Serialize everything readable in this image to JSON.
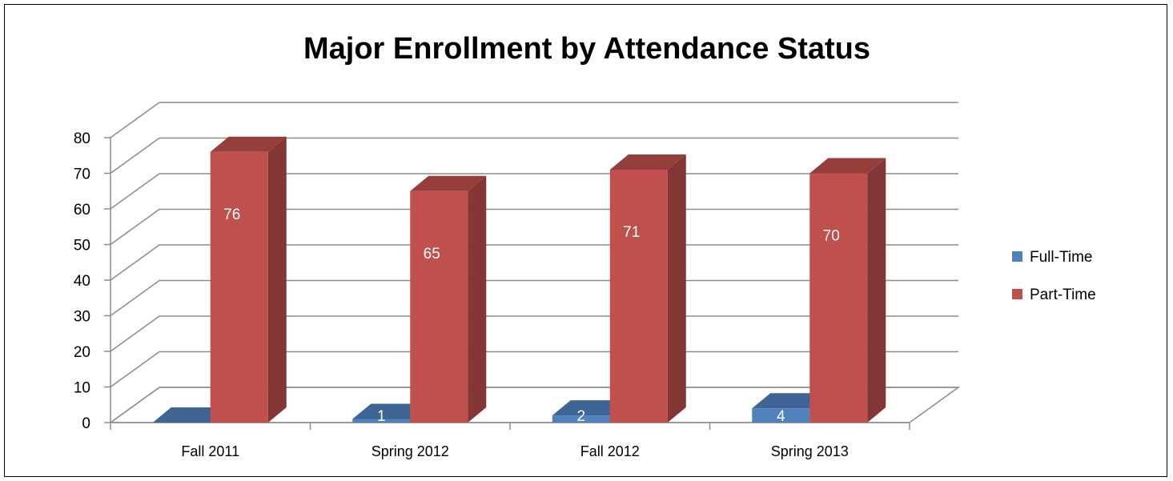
{
  "chart_data": {
    "type": "bar",
    "title": "Major Enrollment by Attendance Status",
    "categories": [
      "Fall 2011",
      "Spring 2012",
      "Fall 2012",
      "Spring 2013"
    ],
    "series": [
      {
        "name": "Full-Time",
        "values": [
          0,
          1,
          2,
          4
        ],
        "labels": [
          "",
          "1",
          "2",
          "4"
        ],
        "color": "#4F81BD"
      },
      {
        "name": "Part-Time",
        "values": [
          76,
          65,
          71,
          70
        ],
        "labels": [
          "76",
          "65",
          "71",
          "70"
        ],
        "color": "#C0504D"
      }
    ],
    "ylim": [
      0,
      80
    ],
    "yticks": [
      "0",
      "10",
      "20",
      "30",
      "40",
      "50",
      "60",
      "70",
      "80"
    ],
    "grid": true,
    "legend_position": "right",
    "style": "3d-clustered-column"
  }
}
